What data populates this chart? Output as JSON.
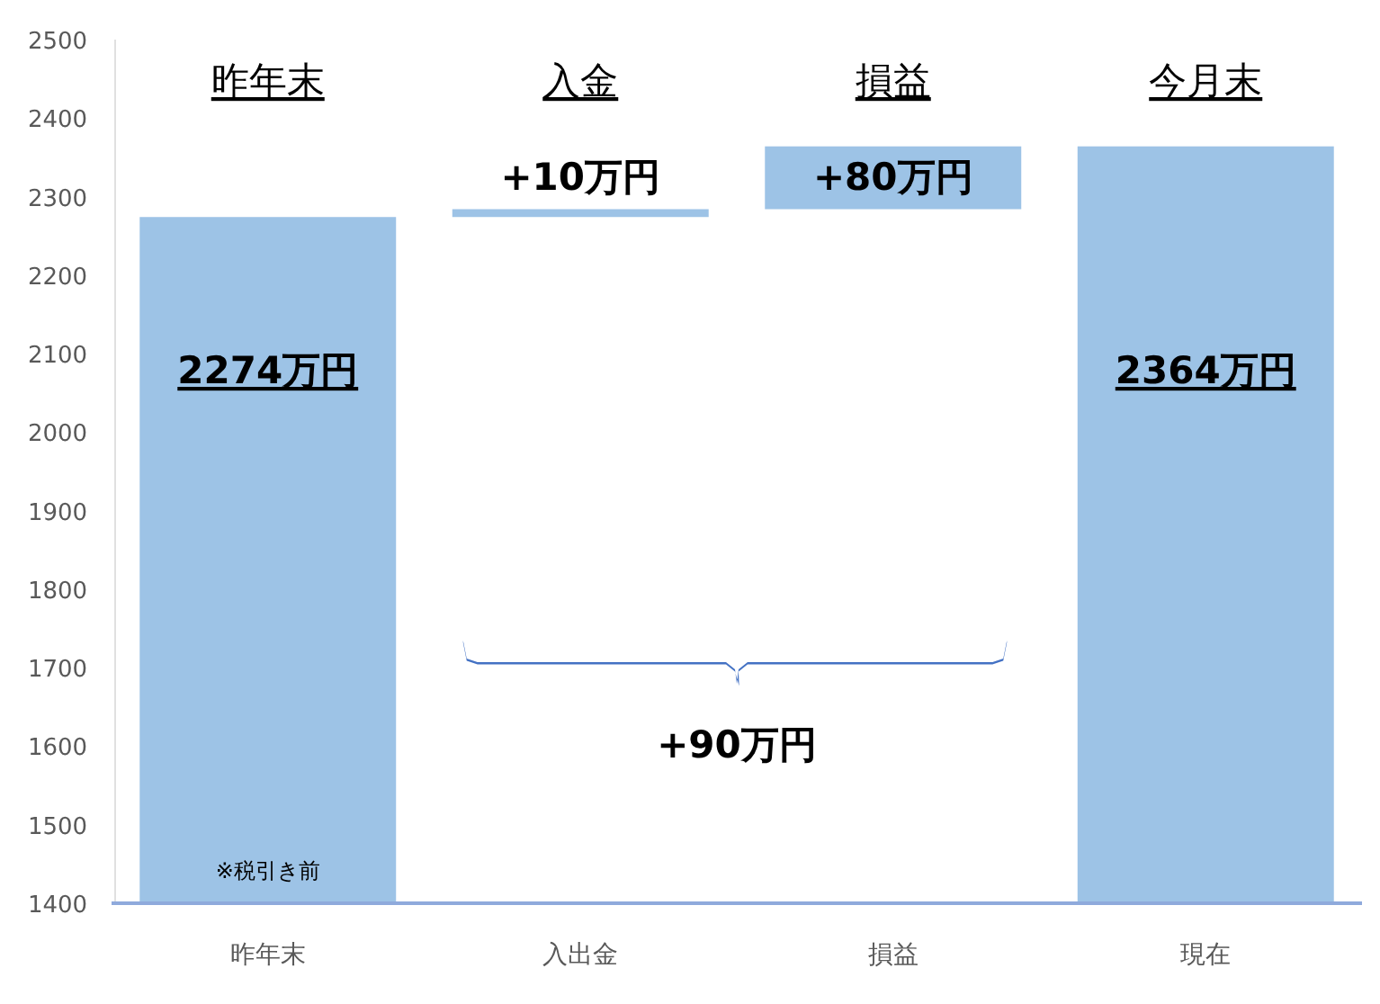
{
  "chart_data": {
    "type": "bar",
    "categories": [
      "昨年末",
      "入出金",
      "損益",
      "現在"
    ],
    "values": [
      2274,
      10,
      80,
      2364
    ],
    "base": [
      null,
      2274,
      2284,
      null
    ],
    "color": "#9dc3e6",
    "value_labels": [
      "2274万円",
      "+10万円",
      "+80万円",
      "2364万円"
    ],
    "ylim": [
      1400,
      2500
    ],
    "yticks": [
      1400,
      1500,
      1600,
      1700,
      1800,
      1900,
      2000,
      2100,
      2200,
      2300,
      2400,
      2500
    ],
    "annotations": [
      "昨年末",
      "入金",
      "損益",
      "今月末",
      "+90万円",
      "※税引き前"
    ],
    "grid": false
  }
}
